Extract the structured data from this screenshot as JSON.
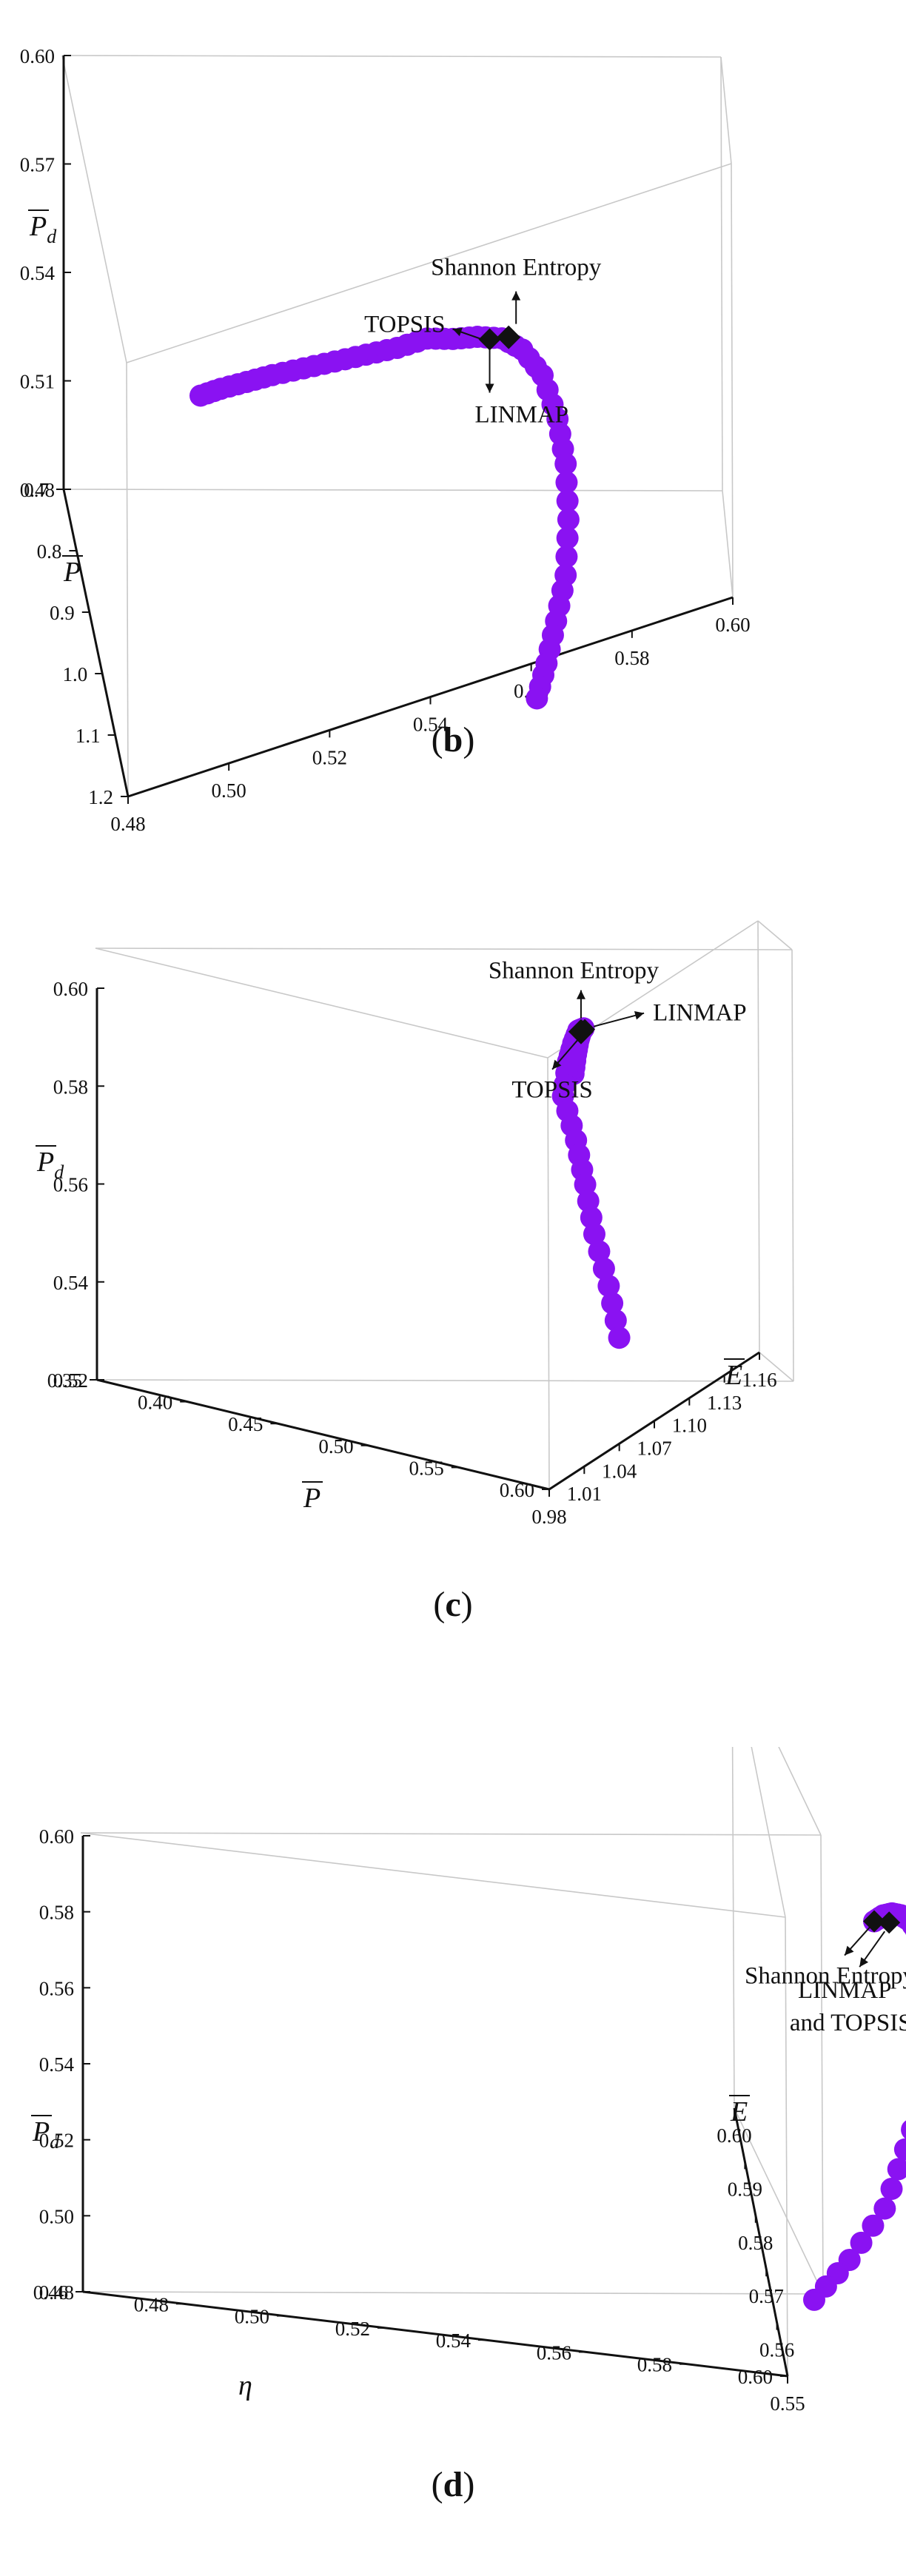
{
  "colors": {
    "front": "#8a12f2",
    "marker": "#111111",
    "box": "#c8c8c8"
  },
  "chart_data": [
    {
      "type": "scatter",
      "dimensions": 3,
      "caption": "b",
      "axes": {
        "x": {
          "label": "η",
          "range": [
            0.48,
            0.6
          ],
          "ticks": [
            "0.48",
            "0.50",
            "0.52",
            "0.54",
            "0.56",
            "0.58",
            "0.60"
          ]
        },
        "y": {
          "label": "P",
          "range": [
            0.7,
            1.2
          ],
          "ticks": [
            "0.7",
            "0.8",
            "0.9",
            "1.0",
            "1.1",
            "1.2"
          ]
        },
        "z": {
          "label": "P",
          "label_sub": "d",
          "range": [
            0.48,
            0.6
          ],
          "ticks": [
            "0.48",
            "0.51",
            "0.54",
            "0.57",
            "0.60"
          ]
        }
      },
      "points": [
        [
          0.505,
          0.7,
          0.506
        ],
        [
          0.508,
          0.73,
          0.513
        ],
        [
          0.512,
          0.76,
          0.52
        ],
        [
          0.516,
          0.79,
          0.527
        ],
        [
          0.521,
          0.82,
          0.534
        ],
        [
          0.526,
          0.85,
          0.541
        ],
        [
          0.531,
          0.88,
          0.548
        ],
        [
          0.536,
          0.91,
          0.555
        ],
        [
          0.541,
          0.93,
          0.561
        ],
        [
          0.545,
          0.96,
          0.566
        ],
        [
          0.549,
          0.98,
          0.57
        ],
        [
          0.553,
          1.0,
          0.573
        ],
        [
          0.556,
          1.03,
          0.575
        ],
        [
          0.559,
          1.06,
          0.573
        ],
        [
          0.561,
          1.09,
          0.566
        ],
        [
          0.562,
          1.11,
          0.557
        ],
        [
          0.562,
          1.13,
          0.545
        ],
        [
          0.561,
          1.15,
          0.533
        ],
        [
          0.559,
          1.16,
          0.522
        ],
        [
          0.557,
          1.17,
          0.512
        ],
        [
          0.555,
          1.18,
          0.504
        ]
      ],
      "annotations": [
        {
          "label": "Shannon Entropy",
          "point": [
            0.554,
            1.01,
            0.575
          ]
        },
        {
          "label": "TOPSIS",
          "point": [
            0.551,
            0.99,
            0.571
          ]
        },
        {
          "label": "LINMAP",
          "point": [
            0.551,
            0.99,
            0.571
          ]
        }
      ]
    },
    {
      "type": "scatter",
      "dimensions": 3,
      "caption": "c",
      "axes": {
        "x": {
          "label": "P",
          "range": [
            0.98,
            1.16
          ],
          "ticks": [
            "0.98",
            "1.01",
            "1.04",
            "1.07",
            "1.10",
            "1.13",
            "1.16"
          ]
        },
        "y": {
          "label": "E",
          "range": [
            0.35,
            0.6
          ],
          "ticks": [
            "0.35",
            "0.40",
            "0.45",
            "0.50",
            "0.55",
            "0.60"
          ]
        },
        "z": {
          "label": "P",
          "label_sub": "d",
          "range": [
            0.52,
            0.6
          ],
          "ticks": [
            "0.52",
            "0.54",
            "0.56",
            "0.58",
            "0.60"
          ]
        }
      },
      "points": [
        [
          1.01,
          0.55,
          0.593
        ],
        [
          1.02,
          0.53,
          0.595
        ],
        [
          1.03,
          0.51,
          0.596
        ],
        [
          1.04,
          0.49,
          0.596
        ],
        [
          1.05,
          0.47,
          0.595
        ],
        [
          1.058,
          0.45,
          0.593
        ],
        [
          1.066,
          0.43,
          0.589
        ],
        [
          1.074,
          0.41,
          0.584
        ],
        [
          1.082,
          0.39,
          0.576
        ],
        [
          1.09,
          0.38,
          0.567
        ],
        [
          1.097,
          0.37,
          0.558
        ],
        [
          1.104,
          0.36,
          0.548
        ],
        [
          1.11,
          0.355,
          0.538
        ],
        [
          1.115,
          0.35,
          0.528
        ]
      ],
      "annotations": [
        {
          "label": "Shannon Entropy",
          "point": [
            1.04,
            0.49,
            0.596
          ]
        },
        {
          "label": "LINMAP",
          "point": [
            1.055,
            0.46,
            0.594
          ]
        },
        {
          "label": "TOPSIS",
          "point": [
            1.055,
            0.46,
            0.594
          ]
        }
      ]
    },
    {
      "type": "scatter",
      "dimensions": 3,
      "caption": "d",
      "axes": {
        "x": {
          "label": "η",
          "range": [
            0.55,
            0.6
          ],
          "ticks": [
            "0.55",
            "0.56",
            "0.57",
            "0.58",
            "0.59",
            "0.60"
          ]
        },
        "y": {
          "label": "E",
          "range": [
            0.46,
            0.6
          ],
          "ticks": [
            "0.46",
            "0.48",
            "0.50",
            "0.52",
            "0.54",
            "0.56",
            "0.58",
            "0.60"
          ]
        },
        "z": {
          "label": "P",
          "label_sub": "d",
          "range": [
            0.48,
            0.6
          ],
          "ticks": [
            "0.48",
            "0.50",
            "0.52",
            "0.54",
            "0.56",
            "0.58",
            "0.60"
          ]
        }
      },
      "points": [
        [
          0.556,
          0.6,
          0.599
        ],
        [
          0.56,
          0.59,
          0.599
        ],
        [
          0.564,
          0.58,
          0.598
        ],
        [
          0.568,
          0.57,
          0.596
        ],
        [
          0.572,
          0.56,
          0.593
        ],
        [
          0.576,
          0.55,
          0.588
        ],
        [
          0.58,
          0.54,
          0.58
        ],
        [
          0.584,
          0.53,
          0.569
        ],
        [
          0.587,
          0.52,
          0.556
        ],
        [
          0.59,
          0.51,
          0.541
        ],
        [
          0.592,
          0.5,
          0.524
        ],
        [
          0.594,
          0.49,
          0.507
        ],
        [
          0.595,
          0.48,
          0.492
        ],
        [
          0.596,
          0.47,
          0.48
        ]
      ],
      "annotations": [
        {
          "label": "Shannon Entropy",
          "point": [
            0.556,
            0.6,
            0.599
          ]
        },
        {
          "label": "LINMAP",
          "point": [
            0.574,
            0.55,
            0.591
          ]
        },
        {
          "label": "and TOPSIS",
          "point": [
            0.574,
            0.55,
            0.591
          ]
        }
      ]
    }
  ]
}
